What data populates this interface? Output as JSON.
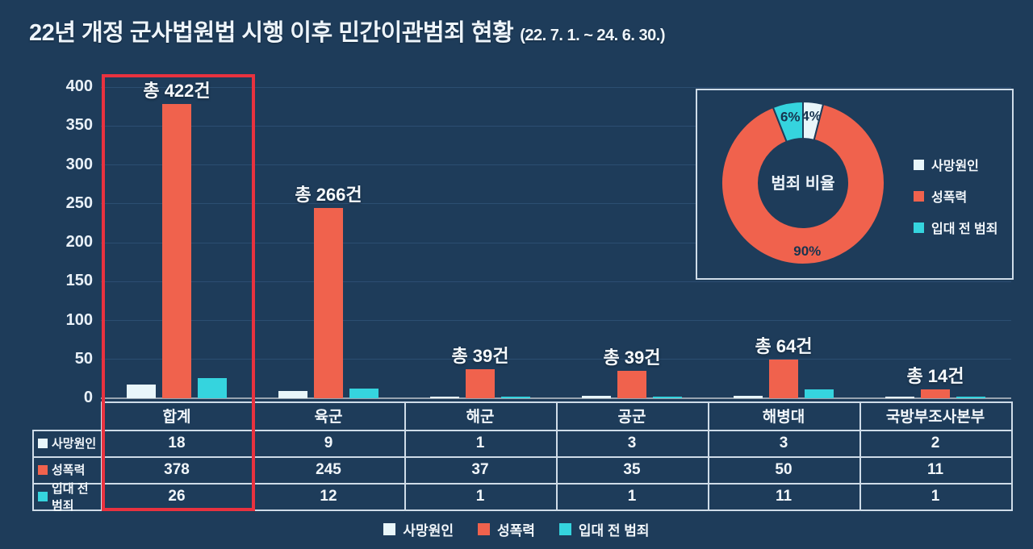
{
  "title": {
    "main": "22년 개정 군사법원법 시행 이후 민간이관범죄 현황",
    "period": "(22. 7. 1. ~ 24. 6. 30.)"
  },
  "colors": {
    "background": "#1e3c5a",
    "grid": "#2c4e72",
    "axis_line": "#97a3b0",
    "death_cause": "#e9f6fa",
    "sexual_violence": "#f0624d",
    "pre_enlistment": "#35d4de",
    "highlight_red": "#e9323f",
    "table_border": "#cfdce8",
    "dark_label_text": "#17344f",
    "light_text": "#eef5fb"
  },
  "chart_data": [
    {
      "type": "bar",
      "title": "22년 개정 군사법원법 시행 이후 민간이관범죄 현황",
      "subtitle": "(22. 7. 1. ~ 24. 6. 30.)",
      "categories": [
        "합계",
        "육군",
        "해군",
        "공군",
        "해병대",
        "국방부조사본부"
      ],
      "series": [
        {
          "key": "death-cause",
          "name": "사망원인",
          "color_key": "death_cause",
          "values": [
            18,
            9,
            1,
            3,
            3,
            2
          ]
        },
        {
          "key": "sexual-violence",
          "name": "성폭력",
          "color_key": "sexual_violence",
          "values": [
            378,
            245,
            37,
            35,
            50,
            11
          ]
        },
        {
          "key": "pre-enlistment-crime",
          "name": "입대 전 범죄",
          "color_key": "pre_enlistment",
          "values": [
            26,
            12,
            1,
            1,
            11,
            1
          ]
        }
      ],
      "totals": [
        422,
        266,
        39,
        39,
        64,
        14
      ],
      "total_labels": [
        "총 422건",
        "총 266건",
        "총 39건",
        "총 39건",
        "총 64건",
        "총 14건"
      ],
      "ylim": [
        0,
        400
      ],
      "yticks": [
        0,
        50,
        100,
        150,
        200,
        250,
        300,
        350,
        400
      ],
      "grid": true,
      "legend_position": "bottom",
      "highlight_category": "합계"
    },
    {
      "type": "pie",
      "title": "범죄 비율",
      "labels": [
        "사망원인",
        "성폭력",
        "입대 전 범죄"
      ],
      "values_pct": [
        4,
        90,
        6
      ],
      "slice_labels": [
        "4%",
        "90%",
        "6%"
      ],
      "slice_color_keys": [
        "death_cause",
        "sexual_violence",
        "pre_enlistment"
      ],
      "legend_position": "right",
      "donut": true
    }
  ],
  "table": {
    "column_headers": [
      "합계",
      "육군",
      "해군",
      "공군",
      "해병대",
      "국방부조사본부"
    ],
    "rows": [
      {
        "label": "사망원인",
        "values": [
          "18",
          "9",
          "1",
          "3",
          "3",
          "2"
        ]
      },
      {
        "label": "성폭력",
        "values": [
          "378",
          "245",
          "37",
          "35",
          "50",
          "11"
        ]
      },
      {
        "label": "입대 전 범죄",
        "values": [
          "26",
          "12",
          "1",
          "1",
          "11",
          "1"
        ]
      }
    ]
  }
}
